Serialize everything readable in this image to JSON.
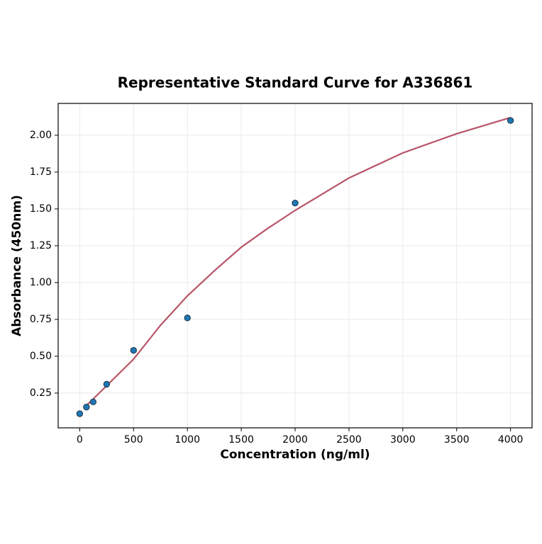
{
  "chart_data": {
    "type": "scatter",
    "title": "Representative Standard Curve for A336861",
    "xlabel": "Concentration (ng/ml)",
    "ylabel": "Absorbance (450nm)",
    "x": [
      0,
      62.5,
      125,
      250,
      500,
      1000,
      2000,
      4000
    ],
    "values": [
      0.11,
      0.155,
      0.19,
      0.31,
      0.54,
      0.76,
      1.54,
      2.1
    ],
    "color": "#1f77b4",
    "curve": {
      "color": "#b85468",
      "x": [
        62.5,
        250,
        500,
        750,
        1000,
        1250,
        1500,
        1750,
        2000,
        2500,
        3000,
        3500,
        4000
      ],
      "values": [
        0.165,
        0.3,
        0.48,
        0.71,
        0.91,
        1.08,
        1.24,
        1.37,
        1.49,
        1.71,
        1.88,
        2.01,
        2.12
      ]
    },
    "xlim": [
      -200,
      4200
    ],
    "ylim": [
      0.014,
      2.216
    ],
    "xticks": [
      0,
      500,
      1000,
      1500,
      2000,
      2500,
      3000,
      3500,
      4000
    ],
    "yticks": [
      0.25,
      {
        "value": 0.5,
        "label": "0.50"
      },
      0.75,
      {
        "value": 1.0,
        "label": "1.00"
      },
      1.25,
      {
        "value": 1.5,
        "label": "1.50"
      },
      1.75,
      {
        "value": 2.0,
        "label": "2.00"
      }
    ],
    "grid": true
  }
}
